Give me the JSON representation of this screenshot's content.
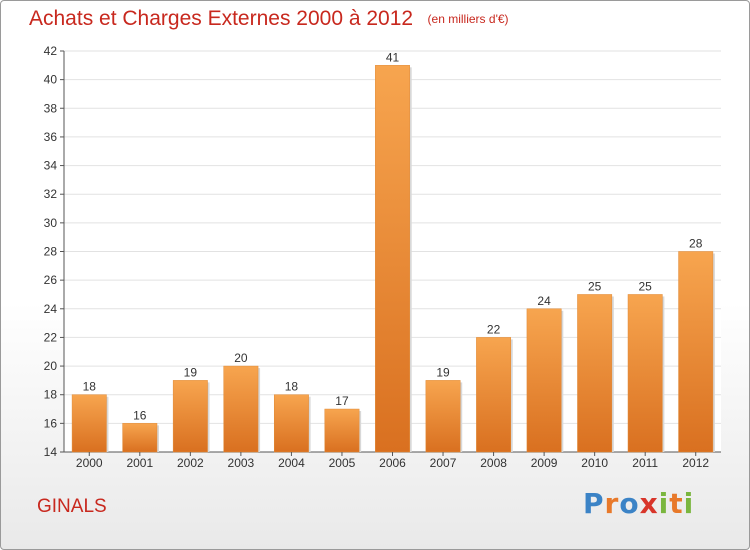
{
  "header": {
    "title": "Achats et Charges Externes 2000 à 2012",
    "subtitle": "(en milliers d'€)"
  },
  "footer": {
    "commune": "GINALS",
    "logo": [
      "P",
      "r",
      "o",
      "x",
      "i",
      "t",
      "i"
    ]
  },
  "colors": {
    "accent": "#c8281e",
    "bar_light": "#f7a54f",
    "bar_dark": "#d97020",
    "axis": "#555555"
  },
  "chart_data": {
    "type": "bar",
    "title": "Achats et Charges Externes 2000 à 2012",
    "subtitle": "(en milliers d'€)",
    "categories": [
      "2000",
      "2001",
      "2002",
      "2003",
      "2004",
      "2005",
      "2006",
      "2007",
      "2008",
      "2009",
      "2010",
      "2011",
      "2012"
    ],
    "values": [
      18,
      16,
      19,
      20,
      18,
      17,
      41,
      19,
      22,
      24,
      25,
      25,
      28
    ],
    "ylim": [
      14,
      42
    ],
    "yticks": [
      14,
      16,
      18,
      20,
      22,
      24,
      26,
      28,
      30,
      32,
      34,
      36,
      38,
      40,
      42
    ],
    "grid": true,
    "legend": "none"
  }
}
